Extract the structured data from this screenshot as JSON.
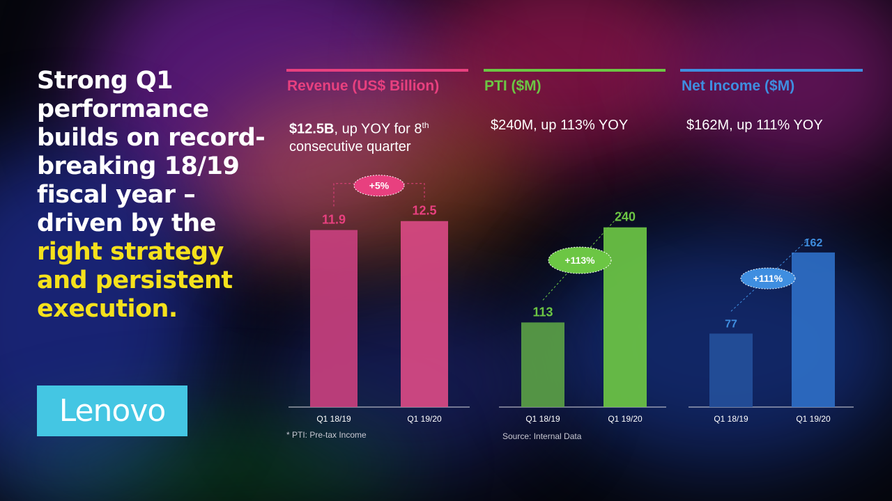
{
  "headline": {
    "white": "Strong Q1 performance builds on record-breaking 18/19 fiscal year – driven by the",
    "yellow": "right strategy and persistent execution."
  },
  "logo": {
    "text": "Lenovo"
  },
  "panels": [
    {
      "title": "Revenue (US$ Billion)",
      "sub_bold": "$12.5B",
      "sub_rest": ", up YOY for 8",
      "sub_sup": "th",
      "sub_tail": "consecutive quarter",
      "color": "#e8407f"
    },
    {
      "title": "PTI ($M)",
      "sub_bold": "",
      "sub_rest": "$240M, up 113% YOY",
      "sub_sup": "",
      "sub_tail": "",
      "color": "#6cc644"
    },
    {
      "title": "Net Income ($M)",
      "sub_bold": "",
      "sub_rest": "$162M, up 111% YOY",
      "sub_sup": "",
      "sub_tail": "",
      "color": "#3f8ee0"
    }
  ],
  "footnotes": {
    "pti": "* PTI: Pre-tax Income",
    "source": "Source: Internal Data"
  },
  "chart_data": [
    {
      "type": "bar",
      "categories": [
        "Q1 18/19",
        "Q1 19/20"
      ],
      "values": [
        11.9,
        12.5
      ],
      "value_labels": [
        "11.9",
        "12.5"
      ],
      "title": "Revenue (US$ Billion)",
      "ylim": [
        0,
        15.2
      ],
      "annotation": "+5%",
      "colors": [
        "#c8407e",
        "#d94a84"
      ],
      "label_color": "#e8407f"
    },
    {
      "type": "bar",
      "categories": [
        "Q1 18/19",
        "Q1 19/20"
      ],
      "values": [
        113,
        240
      ],
      "value_labels": [
        "113",
        "240"
      ],
      "title": "PTI ($M)",
      "ylim": [
        0,
        302
      ],
      "annotation": "+113%",
      "colors": [
        "#5aa045",
        "#6cc644"
      ],
      "label_color": "#6cc644"
    },
    {
      "type": "bar",
      "categories": [
        "Q1 18/19",
        "Q1 19/20"
      ],
      "values": [
        77,
        162
      ],
      "value_labels": [
        "77",
        "162"
      ],
      "title": "Net Income ($M)",
      "ylim": [
        0,
        237
      ],
      "annotation": "+111%",
      "colors": [
        "#244f9a",
        "#2e6ec4"
      ],
      "label_color": "#3f8ee0"
    }
  ]
}
